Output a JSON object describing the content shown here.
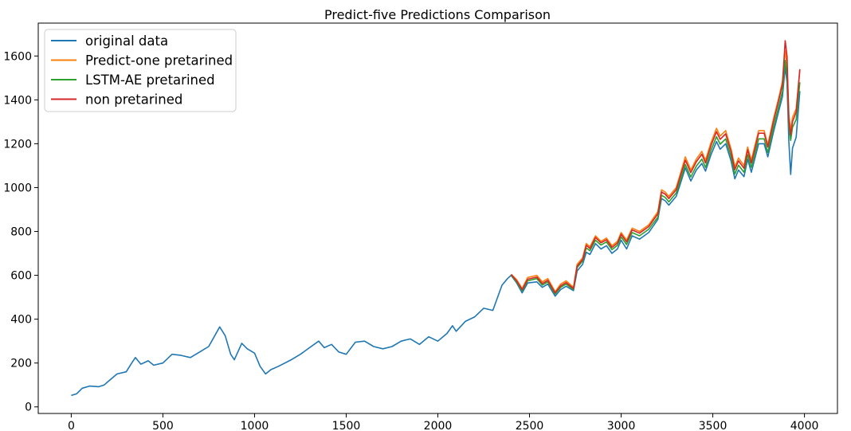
{
  "chart_data": {
    "type": "line",
    "title": "Predict-five Predictions Comparison",
    "xlabel": "",
    "ylabel": "",
    "xlim": [
      -180,
      4180
    ],
    "ylim": [
      -30,
      1750
    ],
    "xticks": [
      0,
      500,
      1000,
      1500,
      2000,
      2500,
      3000,
      3500,
      4000
    ],
    "yticks": [
      0,
      200,
      400,
      600,
      800,
      1000,
      1200,
      1400,
      1600
    ],
    "xtick_labels": [
      "0",
      "500",
      "1000",
      "1500",
      "2000",
      "2500",
      "3000",
      "3500",
      "4000"
    ],
    "ytick_labels": [
      "0",
      "200",
      "400",
      "600",
      "800",
      "1000",
      "1200",
      "1400",
      "1600"
    ],
    "grid": false,
    "legend_position": "upper left",
    "series": [
      {
        "name": "original data",
        "color": "#1f77b4",
        "points": [
          [
            0,
            52
          ],
          [
            30,
            60
          ],
          [
            60,
            85
          ],
          [
            100,
            95
          ],
          [
            150,
            92
          ],
          [
            180,
            100
          ],
          [
            200,
            115
          ],
          [
            250,
            150
          ],
          [
            300,
            160
          ],
          [
            330,
            200
          ],
          [
            350,
            225
          ],
          [
            380,
            195
          ],
          [
            420,
            210
          ],
          [
            450,
            190
          ],
          [
            500,
            200
          ],
          [
            550,
            240
          ],
          [
            600,
            235
          ],
          [
            650,
            225
          ],
          [
            700,
            250
          ],
          [
            750,
            275
          ],
          [
            780,
            320
          ],
          [
            810,
            365
          ],
          [
            840,
            325
          ],
          [
            870,
            240
          ],
          [
            890,
            215
          ],
          [
            930,
            290
          ],
          [
            960,
            265
          ],
          [
            1000,
            245
          ],
          [
            1030,
            185
          ],
          [
            1060,
            150
          ],
          [
            1090,
            170
          ],
          [
            1130,
            185
          ],
          [
            1200,
            215
          ],
          [
            1250,
            240
          ],
          [
            1300,
            270
          ],
          [
            1350,
            300
          ],
          [
            1380,
            270
          ],
          [
            1420,
            285
          ],
          [
            1460,
            250
          ],
          [
            1500,
            240
          ],
          [
            1550,
            295
          ],
          [
            1600,
            300
          ],
          [
            1650,
            275
          ],
          [
            1700,
            265
          ],
          [
            1750,
            275
          ],
          [
            1800,
            300
          ],
          [
            1850,
            310
          ],
          [
            1900,
            285
          ],
          [
            1950,
            320
          ],
          [
            2000,
            300
          ],
          [
            2050,
            335
          ],
          [
            2080,
            370
          ],
          [
            2100,
            345
          ],
          [
            2150,
            390
          ],
          [
            2200,
            410
          ],
          [
            2250,
            450
          ],
          [
            2300,
            440
          ],
          [
            2350,
            555
          ],
          [
            2380,
            585
          ],
          [
            2400,
            600
          ],
          [
            2430,
            565
          ],
          [
            2460,
            520
          ],
          [
            2490,
            565
          ],
          [
            2540,
            570
          ],
          [
            2570,
            545
          ],
          [
            2600,
            560
          ],
          [
            2640,
            505
          ],
          [
            2670,
            535
          ],
          [
            2700,
            550
          ],
          [
            2740,
            530
          ],
          [
            2760,
            620
          ],
          [
            2790,
            650
          ],
          [
            2810,
            705
          ],
          [
            2830,
            695
          ],
          [
            2860,
            745
          ],
          [
            2890,
            720
          ],
          [
            2920,
            735
          ],
          [
            2950,
            700
          ],
          [
            2980,
            720
          ],
          [
            3000,
            760
          ],
          [
            3030,
            720
          ],
          [
            3060,
            780
          ],
          [
            3100,
            765
          ],
          [
            3150,
            795
          ],
          [
            3200,
            855
          ],
          [
            3220,
            950
          ],
          [
            3240,
            940
          ],
          [
            3260,
            920
          ],
          [
            3300,
            960
          ],
          [
            3320,
            1010
          ],
          [
            3350,
            1090
          ],
          [
            3380,
            1030
          ],
          [
            3410,
            1080
          ],
          [
            3440,
            1110
          ],
          [
            3460,
            1075
          ],
          [
            3490,
            1150
          ],
          [
            3520,
            1210
          ],
          [
            3540,
            1175
          ],
          [
            3570,
            1200
          ],
          [
            3600,
            1120
          ],
          [
            3620,
            1040
          ],
          [
            3640,
            1080
          ],
          [
            3670,
            1050
          ],
          [
            3690,
            1130
          ],
          [
            3710,
            1070
          ],
          [
            3750,
            1200
          ],
          [
            3780,
            1200
          ],
          [
            3800,
            1140
          ],
          [
            3830,
            1250
          ],
          [
            3860,
            1350
          ],
          [
            3880,
            1415
          ],
          [
            3895,
            1550
          ],
          [
            3905,
            1480
          ],
          [
            3915,
            1210
          ],
          [
            3925,
            1060
          ],
          [
            3935,
            1180
          ],
          [
            3955,
            1230
          ],
          [
            3975,
            1440
          ]
        ]
      },
      {
        "name": "Predict-one pretarined",
        "color": "#ff7f0e",
        "points": [
          [
            2400,
            605
          ],
          [
            2430,
            580
          ],
          [
            2460,
            540
          ],
          [
            2490,
            590
          ],
          [
            2540,
            600
          ],
          [
            2570,
            570
          ],
          [
            2600,
            585
          ],
          [
            2640,
            525
          ],
          [
            2670,
            560
          ],
          [
            2700,
            575
          ],
          [
            2740,
            545
          ],
          [
            2760,
            650
          ],
          [
            2790,
            680
          ],
          [
            2810,
            745
          ],
          [
            2830,
            730
          ],
          [
            2860,
            780
          ],
          [
            2890,
            755
          ],
          [
            2920,
            770
          ],
          [
            2950,
            735
          ],
          [
            2980,
            755
          ],
          [
            3000,
            795
          ],
          [
            3030,
            760
          ],
          [
            3060,
            815
          ],
          [
            3100,
            800
          ],
          [
            3150,
            830
          ],
          [
            3200,
            890
          ],
          [
            3220,
            990
          ],
          [
            3240,
            980
          ],
          [
            3260,
            960
          ],
          [
            3300,
            1000
          ],
          [
            3320,
            1055
          ],
          [
            3350,
            1140
          ],
          [
            3380,
            1080
          ],
          [
            3410,
            1130
          ],
          [
            3440,
            1165
          ],
          [
            3460,
            1125
          ],
          [
            3490,
            1205
          ],
          [
            3520,
            1270
          ],
          [
            3540,
            1235
          ],
          [
            3570,
            1260
          ],
          [
            3600,
            1175
          ],
          [
            3620,
            1095
          ],
          [
            3640,
            1135
          ],
          [
            3670,
            1100
          ],
          [
            3690,
            1185
          ],
          [
            3710,
            1125
          ],
          [
            3750,
            1260
          ],
          [
            3780,
            1260
          ],
          [
            3800,
            1195
          ],
          [
            3830,
            1310
          ],
          [
            3860,
            1410
          ],
          [
            3880,
            1485
          ],
          [
            3895,
            1625
          ],
          [
            3905,
            1555
          ],
          [
            3915,
            1330
          ],
          [
            3925,
            1260
          ],
          [
            3935,
            1320
          ],
          [
            3955,
            1360
          ],
          [
            3975,
            1535
          ]
        ]
      },
      {
        "name": "LSTM-AE pretarined",
        "color": "#2ca02c",
        "points": [
          [
            2400,
            600
          ],
          [
            2430,
            570
          ],
          [
            2460,
            530
          ],
          [
            2490,
            575
          ],
          [
            2540,
            585
          ],
          [
            2570,
            555
          ],
          [
            2600,
            570
          ],
          [
            2640,
            515
          ],
          [
            2670,
            545
          ],
          [
            2700,
            560
          ],
          [
            2740,
            535
          ],
          [
            2760,
            635
          ],
          [
            2790,
            665
          ],
          [
            2810,
            725
          ],
          [
            2830,
            712
          ],
          [
            2860,
            760
          ],
          [
            2890,
            738
          ],
          [
            2920,
            752
          ],
          [
            2950,
            717
          ],
          [
            2980,
            737
          ],
          [
            3000,
            775
          ],
          [
            3030,
            740
          ],
          [
            3060,
            795
          ],
          [
            3100,
            780
          ],
          [
            3150,
            810
          ],
          [
            3200,
            865
          ],
          [
            3220,
            965
          ],
          [
            3240,
            955
          ],
          [
            3260,
            935
          ],
          [
            3300,
            975
          ],
          [
            3320,
            1025
          ],
          [
            3350,
            1105
          ],
          [
            3380,
            1048
          ],
          [
            3410,
            1098
          ],
          [
            3440,
            1130
          ],
          [
            3460,
            1092
          ],
          [
            3490,
            1170
          ],
          [
            3520,
            1232
          ],
          [
            3540,
            1198
          ],
          [
            3570,
            1222
          ],
          [
            3600,
            1140
          ],
          [
            3620,
            1062
          ],
          [
            3640,
            1102
          ],
          [
            3670,
            1070
          ],
          [
            3690,
            1150
          ],
          [
            3710,
            1092
          ],
          [
            3750,
            1222
          ],
          [
            3780,
            1222
          ],
          [
            3800,
            1160
          ],
          [
            3830,
            1272
          ],
          [
            3860,
            1372
          ],
          [
            3880,
            1440
          ],
          [
            3895,
            1580
          ],
          [
            3905,
            1510
          ],
          [
            3915,
            1280
          ],
          [
            3925,
            1215
          ],
          [
            3935,
            1275
          ],
          [
            3955,
            1310
          ],
          [
            3975,
            1480
          ]
        ]
      },
      {
        "name": "non pretarined",
        "color": "#d62728",
        "points": [
          [
            2400,
            603
          ],
          [
            2430,
            575
          ],
          [
            2460,
            535
          ],
          [
            2490,
            582
          ],
          [
            2540,
            592
          ],
          [
            2570,
            562
          ],
          [
            2600,
            577
          ],
          [
            2640,
            520
          ],
          [
            2670,
            552
          ],
          [
            2700,
            567
          ],
          [
            2740,
            540
          ],
          [
            2760,
            642
          ],
          [
            2790,
            672
          ],
          [
            2810,
            737
          ],
          [
            2830,
            722
          ],
          [
            2860,
            772
          ],
          [
            2890,
            748
          ],
          [
            2920,
            762
          ],
          [
            2950,
            727
          ],
          [
            2980,
            747
          ],
          [
            3000,
            787
          ],
          [
            3030,
            752
          ],
          [
            3060,
            807
          ],
          [
            3100,
            792
          ],
          [
            3150,
            822
          ],
          [
            3200,
            880
          ],
          [
            3220,
            980
          ],
          [
            3240,
            970
          ],
          [
            3260,
            950
          ],
          [
            3300,
            990
          ],
          [
            3320,
            1045
          ],
          [
            3350,
            1125
          ],
          [
            3380,
            1068
          ],
          [
            3410,
            1118
          ],
          [
            3440,
            1152
          ],
          [
            3460,
            1112
          ],
          [
            3490,
            1192
          ],
          [
            3520,
            1255
          ],
          [
            3540,
            1220
          ],
          [
            3570,
            1245
          ],
          [
            3600,
            1162
          ],
          [
            3620,
            1082
          ],
          [
            3640,
            1122
          ],
          [
            3670,
            1088
          ],
          [
            3690,
            1172
          ],
          [
            3710,
            1112
          ],
          [
            3750,
            1248
          ],
          [
            3780,
            1248
          ],
          [
            3800,
            1185
          ],
          [
            3830,
            1298
          ],
          [
            3860,
            1400
          ],
          [
            3880,
            1470
          ],
          [
            3895,
            1670
          ],
          [
            3905,
            1600
          ],
          [
            3915,
            1310
          ],
          [
            3925,
            1240
          ],
          [
            3935,
            1300
          ],
          [
            3955,
            1345
          ],
          [
            3975,
            1540
          ]
        ]
      }
    ]
  }
}
